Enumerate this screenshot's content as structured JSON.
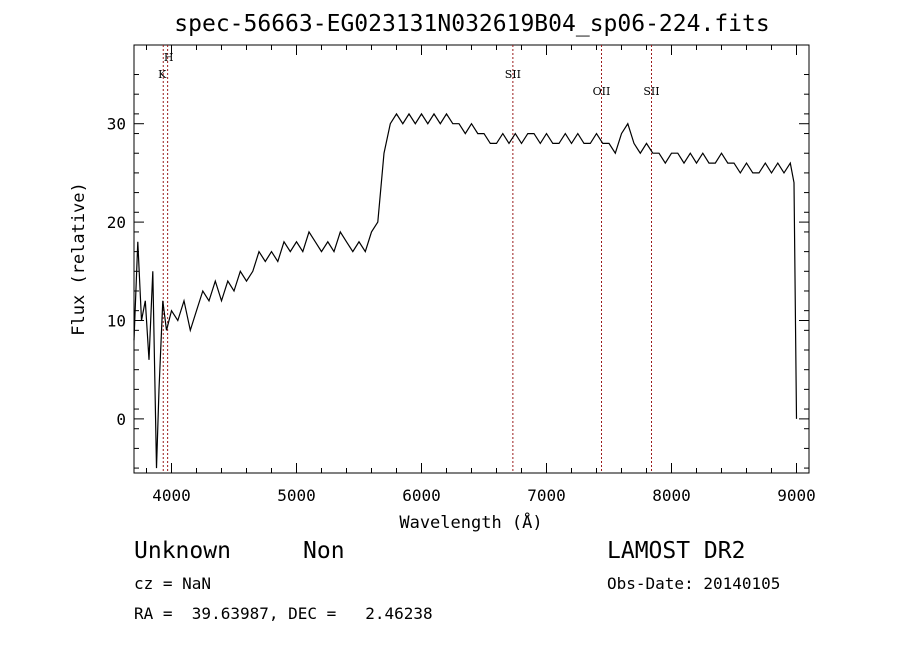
{
  "chart_data": {
    "type": "line",
    "title": "spec-56663-EG023131N032619B04_sp06-224.fits",
    "xlabel": "Wavelength (Å)",
    "ylabel": "Flux (relative)",
    "xlim": [
      3700,
      9100
    ],
    "ylim": [
      -5.5,
      38
    ],
    "x_ticks": [
      4000,
      5000,
      6000,
      7000,
      8000,
      9000
    ],
    "y_ticks": [
      0,
      10,
      20,
      30
    ],
    "grid": false,
    "series": [
      {
        "name": "",
        "color": "#000000",
        "points": [
          [
            3700,
            8
          ],
          [
            3730,
            18
          ],
          [
            3760,
            10
          ],
          [
            3790,
            12
          ],
          [
            3820,
            6
          ],
          [
            3850,
            15
          ],
          [
            3880,
            -5
          ],
          [
            3900,
            3
          ],
          [
            3930,
            12
          ],
          [
            3960,
            9
          ],
          [
            4000,
            11
          ],
          [
            4050,
            10
          ],
          [
            4100,
            12
          ],
          [
            4150,
            9
          ],
          [
            4200,
            11
          ],
          [
            4250,
            13
          ],
          [
            4300,
            12
          ],
          [
            4350,
            14
          ],
          [
            4400,
            12
          ],
          [
            4450,
            14
          ],
          [
            4500,
            13
          ],
          [
            4550,
            15
          ],
          [
            4600,
            14
          ],
          [
            4650,
            15
          ],
          [
            4700,
            17
          ],
          [
            4750,
            16
          ],
          [
            4800,
            17
          ],
          [
            4850,
            16
          ],
          [
            4900,
            18
          ],
          [
            4950,
            17
          ],
          [
            5000,
            18
          ],
          [
            5050,
            17
          ],
          [
            5100,
            19
          ],
          [
            5150,
            18
          ],
          [
            5200,
            17
          ],
          [
            5250,
            18
          ],
          [
            5300,
            17
          ],
          [
            5350,
            19
          ],
          [
            5400,
            18
          ],
          [
            5450,
            17
          ],
          [
            5500,
            18
          ],
          [
            5550,
            17
          ],
          [
            5600,
            19
          ],
          [
            5650,
            20
          ],
          [
            5700,
            27
          ],
          [
            5750,
            30
          ],
          [
            5800,
            31
          ],
          [
            5850,
            30
          ],
          [
            5900,
            31
          ],
          [
            5950,
            30
          ],
          [
            6000,
            31
          ],
          [
            6050,
            30
          ],
          [
            6100,
            31
          ],
          [
            6150,
            30
          ],
          [
            6200,
            31
          ],
          [
            6250,
            30
          ],
          [
            6300,
            30
          ],
          [
            6350,
            29
          ],
          [
            6400,
            30
          ],
          [
            6450,
            29
          ],
          [
            6500,
            29
          ],
          [
            6550,
            28
          ],
          [
            6600,
            28
          ],
          [
            6650,
            29
          ],
          [
            6700,
            28
          ],
          [
            6750,
            29
          ],
          [
            6800,
            28
          ],
          [
            6850,
            29
          ],
          [
            6900,
            29
          ],
          [
            6950,
            28
          ],
          [
            7000,
            29
          ],
          [
            7050,
            28
          ],
          [
            7100,
            28
          ],
          [
            7150,
            29
          ],
          [
            7200,
            28
          ],
          [
            7250,
            29
          ],
          [
            7300,
            28
          ],
          [
            7350,
            28
          ],
          [
            7400,
            29
          ],
          [
            7450,
            28
          ],
          [
            7500,
            28
          ],
          [
            7550,
            27
          ],
          [
            7600,
            29
          ],
          [
            7650,
            30
          ],
          [
            7700,
            28
          ],
          [
            7750,
            27
          ],
          [
            7800,
            28
          ],
          [
            7850,
            27
          ],
          [
            7900,
            27
          ],
          [
            7950,
            26
          ],
          [
            8000,
            27
          ],
          [
            8050,
            27
          ],
          [
            8100,
            26
          ],
          [
            8150,
            27
          ],
          [
            8200,
            26
          ],
          [
            8250,
            27
          ],
          [
            8300,
            26
          ],
          [
            8350,
            26
          ],
          [
            8400,
            27
          ],
          [
            8450,
            26
          ],
          [
            8500,
            26
          ],
          [
            8550,
            25
          ],
          [
            8600,
            26
          ],
          [
            8650,
            25
          ],
          [
            8700,
            25
          ],
          [
            8750,
            26
          ],
          [
            8800,
            25
          ],
          [
            8850,
            26
          ],
          [
            8900,
            25
          ],
          [
            8950,
            26
          ],
          [
            8980,
            24
          ],
          [
            9000,
            0
          ]
        ]
      }
    ],
    "line_markers": [
      {
        "label_top": "H",
        "label_bottom": "K",
        "x": 3969,
        "x2": 3934
      },
      {
        "label": "SII",
        "x": 6731
      },
      {
        "label": "OII",
        "x": 7440
      },
      {
        "label": "SII",
        "x": 7840
      }
    ],
    "marker_color": "#9b1b1b"
  },
  "footer": {
    "class_label": "Unknown",
    "subclass_label": "Non",
    "cz": "cz = NaN",
    "coords": "RA =  39.63987, DEC =   2.46238",
    "survey": "LAMOST DR2",
    "obs_date": "Obs-Date: 20140105"
  }
}
